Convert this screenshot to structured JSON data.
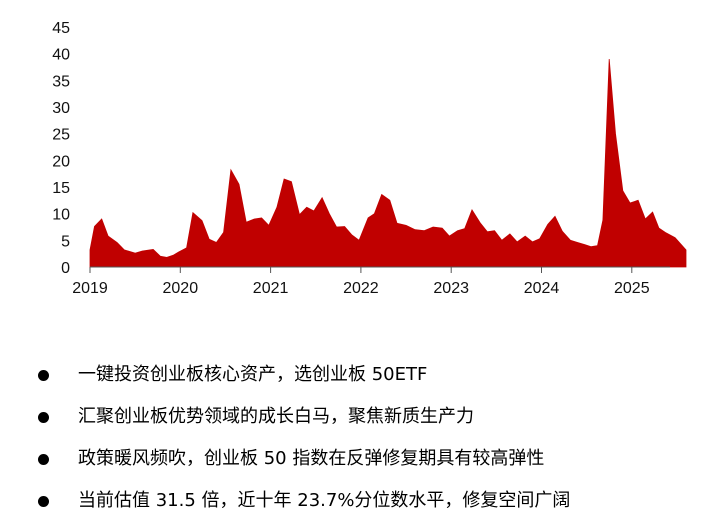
{
  "chart_data": {
    "type": "area",
    "title": "",
    "xlabel": "",
    "ylabel": "",
    "ylim": [
      0,
      45
    ],
    "yticks": [
      0,
      5,
      10,
      15,
      20,
      25,
      30,
      35,
      40,
      45
    ],
    "xlim": [
      2019.0,
      2025.6
    ],
    "xticks": [
      "2019",
      "2020",
      "2021",
      "2022",
      "2023",
      "2024",
      "2025"
    ],
    "grid": false,
    "legend": "none",
    "fill_color": "#C00000",
    "series": [
      {
        "x": [
          2019.0,
          2019.05,
          2019.13,
          2019.2,
          2019.3,
          2019.38,
          2019.5,
          2019.58,
          2019.7,
          2019.78,
          2019.85,
          2019.92,
          2019.98,
          2020.07,
          2020.14,
          2020.24,
          2020.32,
          2020.4,
          2020.48,
          2020.56,
          2020.65,
          2020.73,
          2020.82,
          2020.9,
          2020.98,
          2021.07,
          2021.15,
          2021.23,
          2021.32,
          2021.4,
          2021.48,
          2021.57,
          2021.65,
          2021.73,
          2021.82,
          2021.9,
          2021.98,
          2022.08,
          2022.15,
          2022.23,
          2022.32,
          2022.4,
          2022.5,
          2022.6,
          2022.7,
          2022.8,
          2022.9,
          2022.98,
          2023.07,
          2023.15,
          2023.23,
          2023.32,
          2023.4,
          2023.48,
          2023.56,
          2023.65,
          2023.73,
          2023.82,
          2023.9,
          2023.98,
          2024.07,
          2024.15,
          2024.23,
          2024.32,
          2024.4,
          2024.48,
          2024.55,
          2024.62,
          2024.68,
          2024.75,
          2024.82,
          2024.9,
          2024.98,
          2025.07,
          2025.15,
          2025.23,
          2025.3,
          2025.38,
          2025.48,
          2025.6
        ],
        "y": [
          3.2,
          7.6,
          9.0,
          5.8,
          4.6,
          3.2,
          2.6,
          3.0,
          3.3,
          2.0,
          1.8,
          2.2,
          2.8,
          3.6,
          10.2,
          8.7,
          5.2,
          4.6,
          6.5,
          18.2,
          15.5,
          8.4,
          9.0,
          9.2,
          7.8,
          11.2,
          16.5,
          16.0,
          9.8,
          11.2,
          10.5,
          13.0,
          10.0,
          7.5,
          7.6,
          6.0,
          5.0,
          9.2,
          10.0,
          13.6,
          12.5,
          8.2,
          7.8,
          7.0,
          6.8,
          7.5,
          7.3,
          5.8,
          6.8,
          7.2,
          10.7,
          8.3,
          6.6,
          6.8,
          5.0,
          6.2,
          4.7,
          5.8,
          4.7,
          5.3,
          8.0,
          9.5,
          6.7,
          5.0,
          4.6,
          4.2,
          3.8,
          4.0,
          8.8,
          39.0,
          25.0,
          14.3,
          12.0,
          12.5,
          9.0,
          10.3,
          7.3,
          6.4,
          5.5,
          3.2
        ]
      }
    ]
  },
  "bullets": [
    "一键投资创业板核心资产，选创业板 50ETF",
    "汇聚创业板优势领域的成长白马，聚焦新质生产力",
    "政策暖风频吹，创业板 50 指数在反弹修复期具有较高弹性",
    "当前估值 31.5 倍，近十年 23.7%分位数水平，修复空间广阔"
  ]
}
